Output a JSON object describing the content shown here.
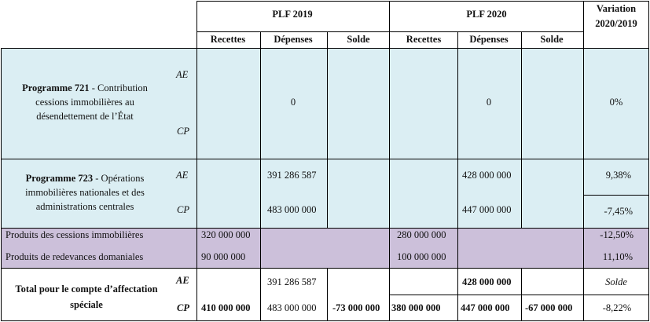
{
  "headers": {
    "plf2019": "PLF 2019",
    "plf2020": "PLF 2020",
    "variation_line1": "Variation",
    "variation_line2": "2020/2019",
    "recettes": "Recettes",
    "depenses": "Dépenses",
    "solde": "Solde"
  },
  "row_labels": {
    "ae": "AE",
    "cp": "CP"
  },
  "prog721": {
    "title_bold": "Programme 721",
    "title_rest": " - Contribution",
    "line2": "cessions immobilières au",
    "line3": "désendettement de l’État",
    "dep2019": "0",
    "dep2020": "0",
    "variation": "0%"
  },
  "prog723": {
    "title_bold": "Programme 723",
    "title_rest": " - Opérations",
    "line2": "immobilières nationales et des",
    "line3": "administrations centrales",
    "ae_dep2019": "391 286 587",
    "cp_dep2019": "483 000 000",
    "ae_dep2020": "428 000 000",
    "cp_dep2020": "447 000 000",
    "ae_variation": "9,38%",
    "cp_variation": "-7,45%"
  },
  "produits": [
    {
      "label": "Produits des cessions immobilières",
      "rec2019": "320 000 000",
      "rec2020": "280 000 000",
      "variation": "-12,50%"
    },
    {
      "label": "Produits de redevances domaniales",
      "rec2019": "90 000 000",
      "rec2020": "100 000 000",
      "variation": "11,10%"
    }
  ],
  "total": {
    "line1": "Total pour le compte d’affectation",
    "line2": "spéciale",
    "ae_dep2019": "391 286 587",
    "ae_dep2020": "428 000 000",
    "ae_variation": "Solde",
    "cp_rec2019": "410 000 000",
    "cp_dep2019": "483 000 000",
    "cp_solde2019": "-73 000 000",
    "cp_rec2020": "380 000 000",
    "cp_dep2020": "447 000 000",
    "cp_solde2020": "-67 000 000",
    "cp_variation": "-8,22%"
  }
}
